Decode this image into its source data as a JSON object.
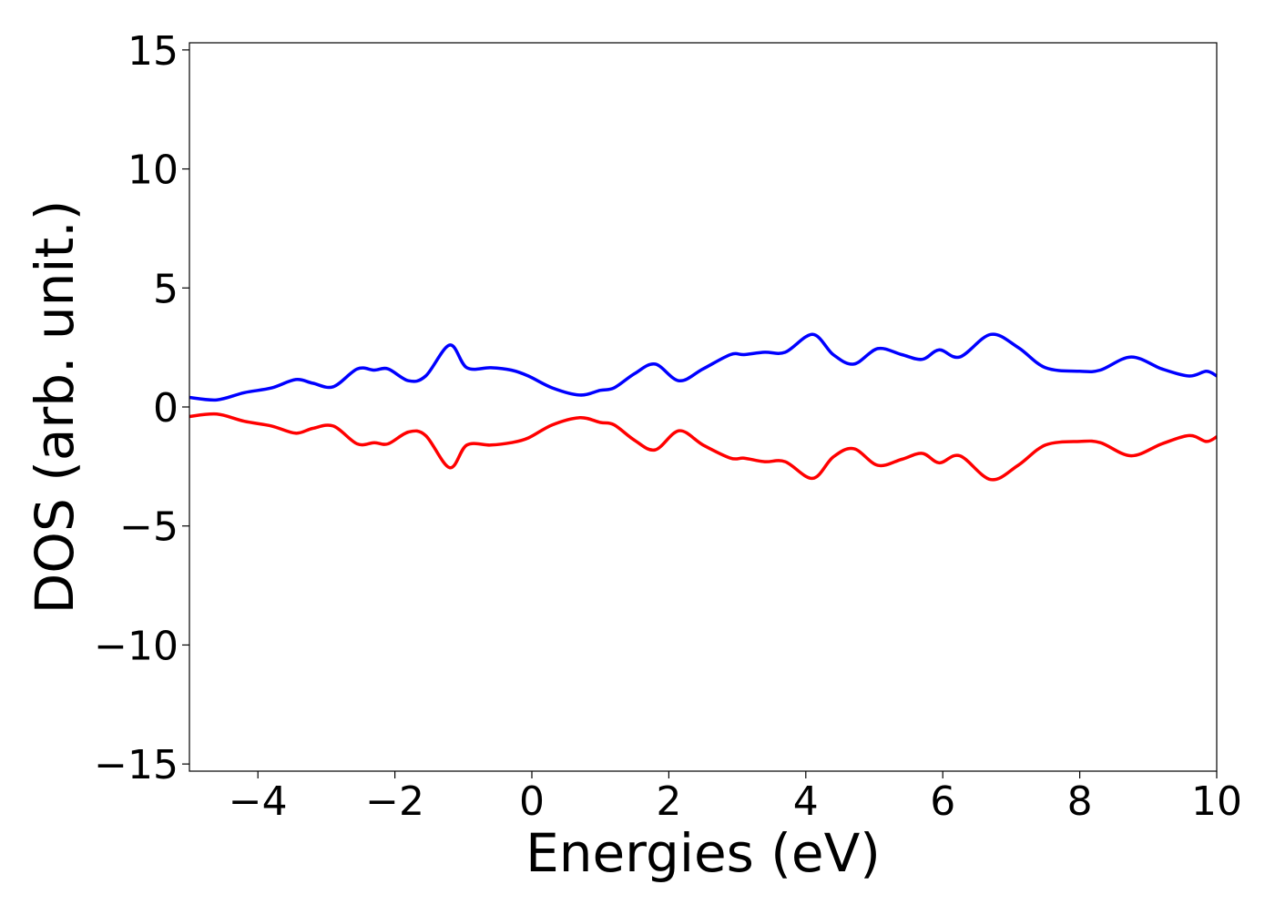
{
  "chart_data": {
    "type": "line",
    "title": "",
    "xlabel": "Energies (eV)",
    "ylabel": "DOS (arb. unit.)",
    "xlim": [
      -5,
      10
    ],
    "ylim": [
      -15.3,
      15.3
    ],
    "xticks": [
      -4,
      -2,
      0,
      2,
      4,
      6,
      8,
      10
    ],
    "xtick_labels": [
      "−4",
      "−2",
      "0",
      "2",
      "4",
      "6",
      "8",
      "10"
    ],
    "yticks": [
      -15,
      -10,
      -5,
      0,
      5,
      10,
      15
    ],
    "ytick_labels": [
      "−15",
      "−10",
      "−5",
      "0",
      "5",
      "10",
      "15"
    ],
    "grid": false,
    "legend": "none",
    "series": [
      {
        "color": "#0000ff",
        "x": [
          -5.0,
          -4.6,
          -4.2,
          -3.8,
          -3.45,
          -3.2,
          -2.9,
          -2.55,
          -2.3,
          -2.1,
          -1.8,
          -1.55,
          -1.2,
          -0.95,
          -0.6,
          -0.3,
          -0.05,
          0.3,
          0.7,
          1.0,
          1.2,
          1.5,
          1.8,
          2.15,
          2.5,
          2.9,
          3.1,
          3.4,
          3.7,
          4.1,
          4.4,
          4.7,
          5.05,
          5.4,
          5.7,
          5.95,
          6.25,
          6.7,
          7.1,
          7.5,
          8.0,
          8.3,
          8.75,
          9.2,
          9.6,
          9.85,
          10.0
        ],
        "values": [
          0.4,
          0.3,
          0.6,
          0.8,
          1.15,
          1.0,
          0.85,
          1.6,
          1.55,
          1.6,
          1.1,
          1.3,
          2.6,
          1.65,
          1.65,
          1.55,
          1.3,
          0.8,
          0.5,
          0.7,
          0.8,
          1.4,
          1.8,
          1.1,
          1.6,
          2.2,
          2.2,
          2.3,
          2.3,
          3.05,
          2.2,
          1.8,
          2.45,
          2.2,
          2.0,
          2.4,
          2.1,
          3.05,
          2.5,
          1.65,
          1.5,
          1.55,
          2.1,
          1.6,
          1.3,
          1.5,
          1.3
        ]
      },
      {
        "color": "#ff0000",
        "x": [
          -5.0,
          -4.6,
          -4.2,
          -3.8,
          -3.45,
          -3.2,
          -2.9,
          -2.55,
          -2.3,
          -2.1,
          -1.8,
          -1.55,
          -1.2,
          -0.95,
          -0.6,
          -0.3,
          -0.05,
          0.3,
          0.7,
          1.0,
          1.2,
          1.5,
          1.8,
          2.15,
          2.5,
          2.9,
          3.1,
          3.4,
          3.7,
          4.1,
          4.4,
          4.7,
          5.05,
          5.4,
          5.7,
          5.95,
          6.25,
          6.7,
          7.1,
          7.5,
          8.0,
          8.3,
          8.75,
          9.2,
          9.6,
          9.85,
          10.0
        ],
        "values": [
          -0.4,
          -0.3,
          -0.6,
          -0.8,
          -1.1,
          -0.9,
          -0.8,
          -1.55,
          -1.5,
          -1.55,
          -1.05,
          -1.2,
          -2.55,
          -1.6,
          -1.6,
          -1.5,
          -1.3,
          -0.75,
          -0.45,
          -0.65,
          -0.75,
          -1.4,
          -1.8,
          -1.0,
          -1.6,
          -2.15,
          -2.15,
          -2.3,
          -2.3,
          -3.0,
          -2.1,
          -1.75,
          -2.45,
          -2.2,
          -1.95,
          -2.35,
          -2.05,
          -3.05,
          -2.45,
          -1.6,
          -1.45,
          -1.5,
          -2.05,
          -1.55,
          -1.2,
          -1.45,
          -1.25
        ]
      }
    ]
  }
}
